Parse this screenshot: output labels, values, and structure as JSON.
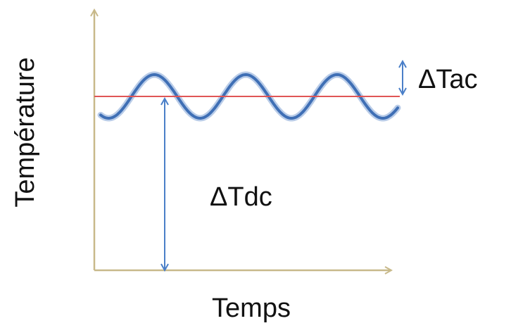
{
  "axes": {
    "x_label": "Temps",
    "y_label": "Température"
  },
  "annotations": {
    "ac_label": "ΔTac",
    "dc_label": "ΔTdc"
  },
  "colors": {
    "axis": "#c8b98a",
    "reference_line": "#e05555",
    "signal": "#3f6fb5",
    "signal_shadow": "#7fa3d6",
    "arrow": "#4a7fc8"
  },
  "signal": {
    "periods": 3
  }
}
